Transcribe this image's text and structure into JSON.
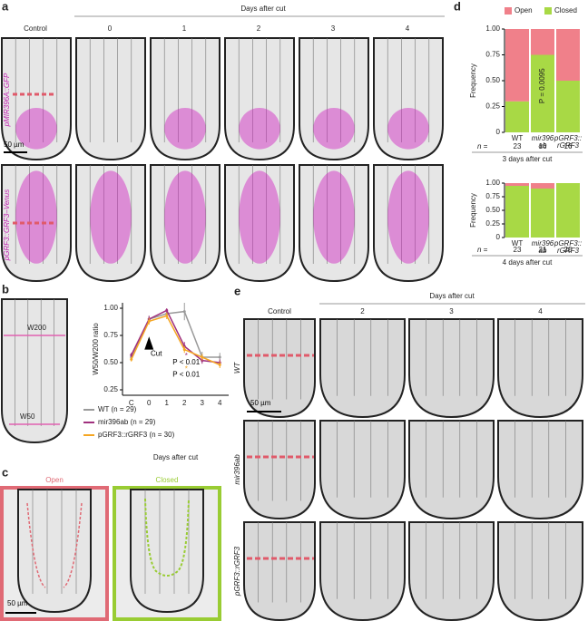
{
  "figure": {
    "a": {
      "label": "a",
      "header": "Days after cut",
      "columns": [
        "Control",
        "0",
        "1",
        "2",
        "3",
        "4"
      ],
      "rows": [
        "pMIR396A::GFP",
        "pGRF3::GRF3–Venus"
      ],
      "scale": "50 µm"
    },
    "b": {
      "label": "b",
      "widths": [
        "W200",
        "W50"
      ]
    },
    "c": {
      "label": "c",
      "panels": [
        "Open",
        "Closed"
      ],
      "scale": "50 µm"
    },
    "d": {
      "label": "d"
    },
    "e": {
      "label": "e",
      "header": "Days after cut",
      "columns": [
        "Control",
        "2",
        "3",
        "4"
      ],
      "rows": [
        "WT",
        "mir396ab",
        "pGRF3::rGRF3"
      ],
      "scale": "50 µm"
    }
  },
  "chart_data": [
    {
      "type": "line",
      "ylabel": "W50/W200 ratio",
      "xlabel": "Days after cut",
      "categories": [
        "C",
        "0",
        "1",
        "2",
        "3",
        "4"
      ],
      "ylim": [
        0.2,
        1.05
      ],
      "yticks": [
        {
          "value": 0.25,
          "label": "0.25"
        },
        {
          "value": 0.5,
          "label": "0.50"
        },
        {
          "value": 0.75,
          "label": "0.75"
        },
        {
          "value": 1,
          "label": "1.00"
        }
      ],
      "series": [
        {
          "name": "WT (n = 29)",
          "color": "#9a9a9a",
          "values": [
            0.55,
            0.9,
            0.95,
            0.97,
            0.55,
            0.55
          ],
          "errors": [
            0.02,
            0.03,
            0.03,
            0.08,
            0.05,
            0.04
          ]
        },
        {
          "name": "mir396ab (n = 29)",
          "color": "#a0307e",
          "values": [
            0.57,
            0.9,
            0.98,
            0.65,
            0.52,
            0.5
          ],
          "errors": [
            0.02,
            0.03,
            0.02,
            0.04,
            0.03,
            0.03
          ]
        },
        {
          "name": "pGRF3::rGRF3 (n = 30)",
          "color": "#f5a623",
          "values": [
            0.53,
            0.88,
            0.93,
            0.62,
            0.55,
            0.48
          ],
          "errors": [
            0.02,
            0.03,
            0.03,
            0.03,
            0.03,
            0.03
          ]
        }
      ],
      "annotations": [
        "Cut",
        "*",
        "P < 0.01",
        "*",
        "P < 0.01"
      ]
    },
    {
      "type": "bar",
      "stacked": true,
      "ylabel": "Frequency",
      "categories": [
        [
          "WT"
        ],
        [
          "mir396",
          "ab"
        ],
        [
          "pGRF3::",
          "rGRF3"
        ]
      ],
      "ylim": [
        0,
        1
      ],
      "yticks": [
        0,
        {
          "value": 0.25,
          "label": "0.25"
        },
        {
          "value": 0.5,
          "label": "0.50"
        },
        {
          "value": 0.75,
          "label": "0.75"
        },
        {
          "value": 1,
          "label": "1.00"
        }
      ],
      "series": [
        {
          "name": "Closed",
          "color": "#a8d945",
          "values": [
            0.3,
            0.75,
            0.5
          ]
        },
        {
          "name": "Open",
          "color": "#f0808a",
          "values": [
            0.7,
            0.25,
            0.5
          ]
        }
      ],
      "n_label": "n =",
      "n": [
        23,
        16,
        16
      ],
      "caption": "3 days after cut",
      "annotation": "P = 0.0095",
      "legend": "top"
    },
    {
      "type": "bar",
      "stacked": true,
      "ylabel": "Frequency",
      "categories": [
        [
          "WT"
        ],
        [
          "mir396",
          "ab"
        ],
        [
          "pGRF3::",
          "rGRF3"
        ]
      ],
      "ylim": [
        0,
        1
      ],
      "yticks": [
        0,
        {
          "value": 0.25,
          "label": "0.25"
        },
        {
          "value": 0.5,
          "label": "0.50"
        },
        {
          "value": 0.75,
          "label": "0.75"
        },
        {
          "value": 1,
          "label": "1.00"
        }
      ],
      "series": [
        {
          "color": "#a8d945",
          "values": [
            0.95,
            0.9,
            1.0
          ]
        },
        {
          "color": "#f0808a",
          "values": [
            0.05,
            0.1,
            0.0
          ]
        }
      ],
      "n_label": "n =",
      "n": [
        23,
        21,
        20
      ],
      "caption": "4 days after cut"
    }
  ]
}
